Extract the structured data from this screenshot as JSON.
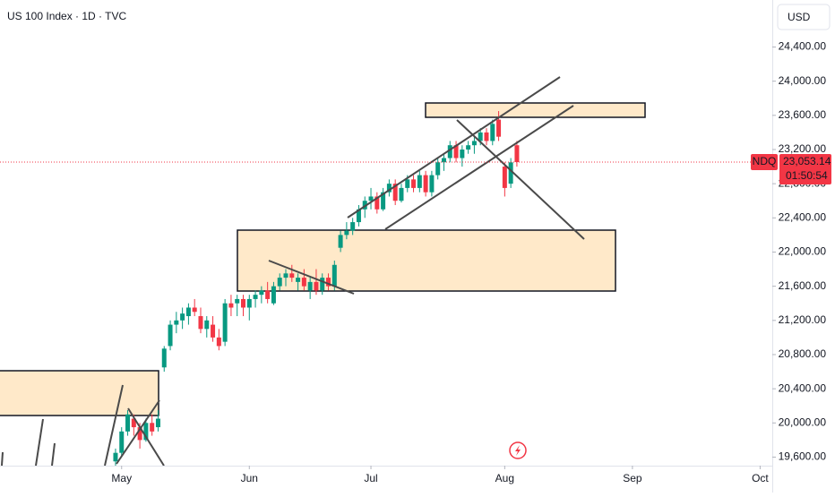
{
  "chart_data": {
    "type": "candlestick",
    "title": "US 100 Index · 1D · TVC",
    "currency": "USD",
    "symbol_tag": "NDQ",
    "countdown": "01:50:54",
    "last_price": {
      "value": 23053.14,
      "label": "23,053.14"
    },
    "up_color": "#089981",
    "down_color": "#f23645",
    "xlim": [
      0,
      127
    ],
    "ylim": [
      19500,
      24950
    ],
    "xticks": [
      {
        "value": 20,
        "label": "May"
      },
      {
        "value": 41,
        "label": "Jun"
      },
      {
        "value": 61,
        "label": "Jul"
      },
      {
        "value": 83,
        "label": "Aug"
      },
      {
        "value": 104,
        "label": "Sep"
      },
      {
        "value": 125,
        "label": "Oct"
      }
    ],
    "yticks": [
      {
        "value": 19600,
        "label": "19,600.00"
      },
      {
        "value": 20000,
        "label": "20,000.00"
      },
      {
        "value": 20400,
        "label": "20,400.00"
      },
      {
        "value": 20800,
        "label": "20,800.00"
      },
      {
        "value": 21200,
        "label": "21,200.00"
      },
      {
        "value": 21600,
        "label": "21,600.00"
      },
      {
        "value": 22000,
        "label": "22,000.00"
      },
      {
        "value": 22400,
        "label": "22,400.00"
      },
      {
        "value": 22800,
        "label": "22,800.00"
      },
      {
        "value": 23200,
        "label": "23,200.00"
      },
      {
        "value": 23600,
        "label": "23,600.00"
      },
      {
        "value": 24000,
        "label": "24,000.00"
      },
      {
        "value": 24400,
        "label": "24,400.00"
      }
    ],
    "x": [
      19,
      20,
      21,
      22,
      23,
      24,
      25,
      26,
      27,
      28,
      29,
      30,
      31,
      32,
      33,
      34,
      35,
      36,
      37,
      38,
      39,
      40,
      41,
      42,
      43,
      44,
      45,
      46,
      47,
      48,
      49,
      50,
      51,
      52,
      53,
      54,
      55,
      56,
      57,
      58,
      59,
      60,
      61,
      62,
      63,
      64,
      65,
      66,
      67,
      68,
      69,
      70,
      71,
      72,
      73,
      74,
      75,
      76,
      77,
      78,
      79,
      80,
      81,
      82,
      83,
      84,
      85
    ],
    "open": [
      19550,
      19650,
      19900,
      20050,
      19950,
      19800,
      20000,
      19950,
      20650,
      20900,
      21150,
      21200,
      21250,
      21350,
      21250,
      21100,
      21150,
      21000,
      20950,
      21400,
      21400,
      21450,
      21350,
      21450,
      21500,
      21550,
      21400,
      21600,
      21700,
      21750,
      21650,
      21700,
      21550,
      21650,
      21550,
      21700,
      21600,
      22050,
      22200,
      22250,
      22350,
      22500,
      22600,
      22650,
      22500,
      22700,
      22800,
      22600,
      22750,
      22850,
      22750,
      22900,
      22700,
      22900,
      23050,
      23100,
      23250,
      23100,
      23200,
      23250,
      23300,
      23400,
      23300,
      23550,
      23000,
      22800,
      23250
    ],
    "high": [
      19700,
      19950,
      20150,
      20100,
      20000,
      20050,
      20100,
      20150,
      20900,
      21200,
      21300,
      21350,
      21400,
      21450,
      21350,
      21250,
      21250,
      21100,
      21450,
      21500,
      21500,
      21500,
      21500,
      21550,
      21600,
      21650,
      21650,
      21750,
      21800,
      21850,
      21750,
      21800,
      21700,
      21800,
      21750,
      21750,
      21900,
      22250,
      22350,
      22400,
      22550,
      22650,
      22750,
      22700,
      22750,
      22850,
      22850,
      22800,
      22900,
      22900,
      22950,
      22950,
      22950,
      23100,
      23150,
      23300,
      23300,
      23250,
      23300,
      23350,
      23450,
      23450,
      23550,
      23650,
      23050,
      23100,
      23300
    ],
    "low": [
      19420,
      19600,
      19850,
      19850,
      19700,
      19780,
      19850,
      19900,
      20600,
      20850,
      21050,
      21100,
      21150,
      21250,
      21050,
      21000,
      20950,
      20850,
      20900,
      21250,
      21250,
      21250,
      21200,
      21350,
      21400,
      21400,
      21380,
      21550,
      21600,
      21650,
      21550,
      21550,
      21450,
      21500,
      21500,
      21550,
      21550,
      22000,
      22150,
      22200,
      22300,
      22400,
      22500,
      22450,
      22480,
      22650,
      22550,
      22580,
      22700,
      22700,
      22700,
      22650,
      22650,
      22850,
      22950,
      23050,
      23050,
      23000,
      23150,
      23150,
      23250,
      23250,
      23250,
      23300,
      22650,
      22750,
      23000
    ],
    "close": [
      19650,
      19900,
      20100,
      19950,
      19800,
      20000,
      19900,
      20050,
      20870,
      21150,
      21200,
      21280,
      21350,
      21300,
      21100,
      21200,
      21000,
      20900,
      21400,
      21350,
      21450,
      21350,
      21450,
      21500,
      21550,
      21450,
      21600,
      21700,
      21750,
      21700,
      21700,
      21600,
      21650,
      21550,
      21700,
      21600,
      21850,
      22200,
      22250,
      22350,
      22500,
      22600,
      22650,
      22500,
      22700,
      22800,
      22600,
      22750,
      22850,
      22750,
      22900,
      22700,
      22900,
      23050,
      23100,
      23250,
      23100,
      23200,
      23250,
      23300,
      23400,
      23300,
      23500,
      23350,
      22750,
      23050,
      23053.14
    ]
  }
}
